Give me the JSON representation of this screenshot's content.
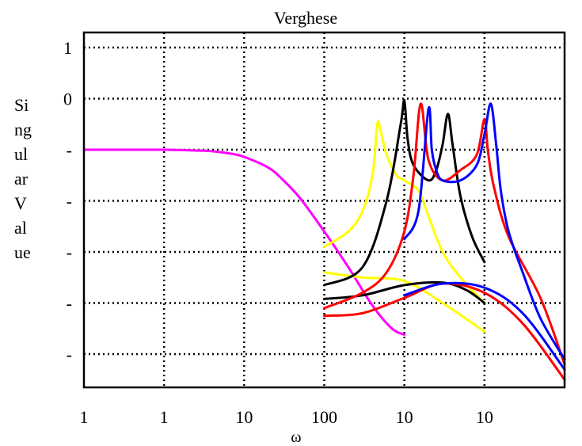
{
  "chart_data": {
    "type": "line",
    "title": "Verghese",
    "xlabel": "ω",
    "ylabel": "Si\nng\nul\nar\nV\nal\nue",
    "x_scale": "log",
    "xlim": [
      0.01,
      10000
    ],
    "ylim": [
      -6,
      1
    ],
    "grid": true,
    "x_tick_labels": [
      "1",
      "1",
      "10",
      "100",
      "10",
      "10"
    ],
    "y_tick_labels": [
      "1",
      "0",
      "-",
      "-",
      "-",
      "-",
      "-"
    ],
    "series": [
      {
        "color": "#ff00ff",
        "x": [
          0.01,
          0.03,
          0.1,
          0.2,
          0.4,
          0.7,
          1,
          2,
          3,
          5,
          10,
          20,
          40,
          70,
          100
        ],
        "y": [
          -1,
          -1,
          -1,
          -1.01,
          -1.03,
          -1.08,
          -1.14,
          -1.35,
          -1.58,
          -1.95,
          -2.6,
          -3.3,
          -4.05,
          -4.5,
          -4.62
        ]
      },
      {
        "color": "#ffff00",
        "x": [
          10,
          20,
          30,
          40,
          46,
          50,
          60,
          80,
          100,
          150,
          200,
          300,
          500,
          1000
        ],
        "y": [
          -2.9,
          -2.6,
          -2.2,
          -1.5,
          -0.5,
          -0.6,
          -1.1,
          -1.5,
          -1.6,
          -1.8,
          -2.3,
          -3.0,
          -3.5,
          -4.0
        ]
      },
      {
        "color": "#ffff00",
        "x": [
          10,
          30,
          100,
          300,
          1000
        ],
        "y": [
          -3.4,
          -3.5,
          -3.57,
          -4.0,
          -4.56
        ]
      },
      {
        "color": "#000000",
        "x": [
          10,
          30,
          60,
          90,
          100,
          110,
          130,
          200,
          250,
          300,
          350,
          400,
          500,
          700,
          1000
        ],
        "y": [
          -3.65,
          -3.3,
          -2.0,
          -0.5,
          -0.05,
          -0.8,
          -1.3,
          -1.6,
          -1.4,
          -0.9,
          -0.3,
          -0.9,
          -1.9,
          -2.7,
          -3.2
        ]
      },
      {
        "color": "#000000",
        "x": [
          10,
          30,
          100,
          300,
          600,
          1000
        ],
        "y": [
          -3.92,
          -3.85,
          -3.65,
          -3.6,
          -3.75,
          -4.0
        ]
      },
      {
        "color": "#ff0000",
        "x": [
          10,
          30,
          60,
          100,
          130,
          160,
          200,
          300,
          500,
          800,
          1000,
          1100,
          1300,
          2000,
          5000,
          10000
        ],
        "y": [
          -4.1,
          -3.8,
          -3.4,
          -2.6,
          -1.5,
          -0.1,
          -1.2,
          -1.6,
          -1.4,
          -1.1,
          -0.4,
          -1.0,
          -1.7,
          -2.7,
          -3.9,
          -5.2
        ]
      },
      {
        "color": "#ff0000",
        "x": [
          10,
          30,
          100,
          300,
          1000,
          3000,
          10000
        ],
        "y": [
          -4.25,
          -4.2,
          -3.9,
          -3.62,
          -3.8,
          -4.4,
          -5.5
        ]
      },
      {
        "color": "#0000ff",
        "x": [
          100,
          150,
          200,
          220,
          250,
          300,
          500,
          800,
          1000,
          1200,
          1400,
          1600,
          2000,
          3000,
          5000,
          10000
        ],
        "y": [
          -2.75,
          -2.2,
          -0.2,
          -1.0,
          -1.4,
          -1.6,
          -1.6,
          -1.3,
          -0.7,
          -0.1,
          -0.9,
          -1.8,
          -2.6,
          -3.4,
          -4.3,
          -5.1
        ]
      },
      {
        "color": "#0000ff",
        "x": [
          100,
          300,
          1000,
          3000,
          10000
        ],
        "y": [
          -3.85,
          -3.62,
          -3.7,
          -4.2,
          -5.3
        ]
      }
    ]
  }
}
